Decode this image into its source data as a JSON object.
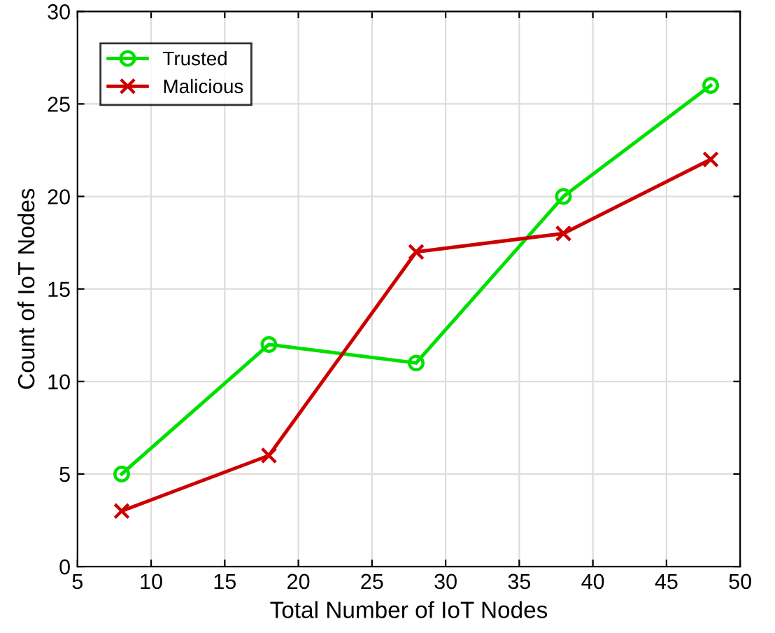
{
  "chart_data": {
    "type": "line",
    "xlabel": "Total Number of IoT Nodes",
    "ylabel": "Count of IoT Nodes",
    "x": [
      8,
      18,
      28,
      38,
      48
    ],
    "series": [
      {
        "name": "Trusted",
        "color": "#00e000",
        "marker": "circle",
        "values": [
          5,
          12,
          11,
          20,
          26
        ]
      },
      {
        "name": "Malicious",
        "color": "#cc0000",
        "marker": "cross",
        "values": [
          3,
          6,
          17,
          18,
          22
        ]
      }
    ],
    "xlim": [
      5,
      50
    ],
    "xticks": [
      5,
      10,
      15,
      20,
      25,
      30,
      35,
      40,
      45,
      50
    ],
    "ylim": [
      0,
      30
    ],
    "yticks": [
      0,
      5,
      10,
      15,
      20,
      25,
      30
    ],
    "grid": true,
    "legend": "top left",
    "line_style": "solid"
  }
}
